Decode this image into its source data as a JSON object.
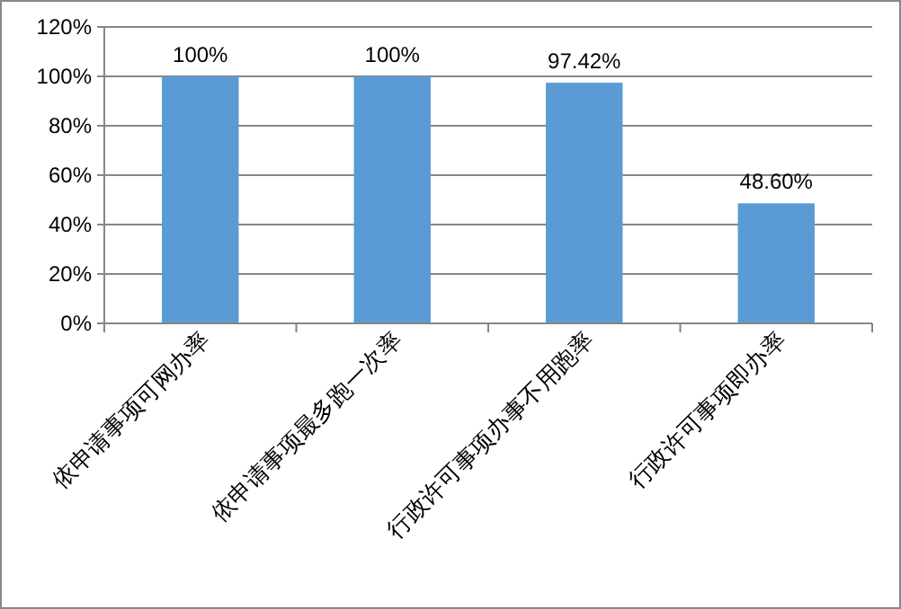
{
  "chart_data": {
    "type": "bar",
    "categories": [
      "依申请事项可网办率",
      "依申请事项最多跑一次率",
      "行政许可事项办事不用跑率",
      "行政许可事项即办率"
    ],
    "values": [
      100,
      100,
      97.42,
      48.6
    ],
    "value_labels": [
      "100%",
      "100%",
      "97.42%",
      "48.60%"
    ],
    "color": "#5b9bd5",
    "ylim": [
      0,
      120
    ],
    "yticks": [
      {
        "value": 0,
        "label": "0%"
      },
      {
        "value": 20,
        "label": "20%"
      },
      {
        "value": 40,
        "label": "40%"
      },
      {
        "value": 60,
        "label": "60%"
      },
      {
        "value": 80,
        "label": "80%"
      },
      {
        "value": 100,
        "label": "100%"
      },
      {
        "value": 120,
        "label": "120%"
      }
    ],
    "grid": "y"
  }
}
